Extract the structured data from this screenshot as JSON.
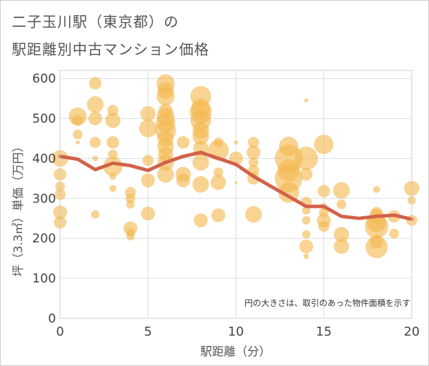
{
  "title": {
    "line1": "二子玉川駅（東京都）の",
    "line2": "駅距離別中古マンション価格"
  },
  "chart_data": {
    "type": "scatter",
    "title": "二子玉川駅（東京都）の駅距離別中古マンション価格",
    "xlabel": "駅距離（分）",
    "ylabel": "坪（3.3㎡）単価（万円）",
    "xlim": [
      0,
      20
    ],
    "ylim": [
      0,
      620
    ],
    "xticks": [
      "0",
      "5",
      "10",
      "15",
      "20"
    ],
    "yticks": [
      "0",
      "100",
      "200",
      "300",
      "400",
      "500",
      "600"
    ],
    "grid": true,
    "note": "円の大きさは、取引のあった物件面積を示す",
    "colors": {
      "bubble": "#f3b84f",
      "trend": "#d2624a",
      "grid": "#d9dde3"
    },
    "bubbles": [
      {
        "x": 0,
        "y": 400,
        "s": 12
      },
      {
        "x": 0,
        "y": 360,
        "s": 9
      },
      {
        "x": 0,
        "y": 330,
        "s": 7
      },
      {
        "x": 0,
        "y": 310,
        "s": 8
      },
      {
        "x": 0,
        "y": 265,
        "s": 10
      },
      {
        "x": 0,
        "y": 240,
        "s": 9
      },
      {
        "x": 1,
        "y": 505,
        "s": 13
      },
      {
        "x": 1,
        "y": 495,
        "s": 8
      },
      {
        "x": 1,
        "y": 460,
        "s": 7
      },
      {
        "x": 1,
        "y": 440,
        "s": 3
      },
      {
        "x": 2,
        "y": 588,
        "s": 9
      },
      {
        "x": 2,
        "y": 535,
        "s": 12
      },
      {
        "x": 2,
        "y": 500,
        "s": 10
      },
      {
        "x": 2,
        "y": 440,
        "s": 8
      },
      {
        "x": 2,
        "y": 400,
        "s": 4
      },
      {
        "x": 2,
        "y": 260,
        "s": 6
      },
      {
        "x": 3,
        "y": 520,
        "s": 8
      },
      {
        "x": 3,
        "y": 495,
        "s": 11
      },
      {
        "x": 3,
        "y": 440,
        "s": 9
      },
      {
        "x": 3,
        "y": 410,
        "s": 7
      },
      {
        "x": 3,
        "y": 380,
        "s": 14
      },
      {
        "x": 3,
        "y": 355,
        "s": 5
      },
      {
        "x": 3,
        "y": 325,
        "s": 5
      },
      {
        "x": 4,
        "y": 315,
        "s": 8
      },
      {
        "x": 4,
        "y": 300,
        "s": 7
      },
      {
        "x": 4,
        "y": 285,
        "s": 6
      },
      {
        "x": 4,
        "y": 225,
        "s": 10
      },
      {
        "x": 4,
        "y": 215,
        "s": 6
      },
      {
        "x": 4,
        "y": 205,
        "s": 6
      },
      {
        "x": 5,
        "y": 512,
        "s": 11
      },
      {
        "x": 5,
        "y": 475,
        "s": 13
      },
      {
        "x": 5,
        "y": 395,
        "s": 8
      },
      {
        "x": 5,
        "y": 345,
        "s": 10
      },
      {
        "x": 5,
        "y": 262,
        "s": 10
      },
      {
        "x": 6,
        "y": 588,
        "s": 13
      },
      {
        "x": 6,
        "y": 570,
        "s": 12
      },
      {
        "x": 6,
        "y": 555,
        "s": 13
      },
      {
        "x": 6,
        "y": 520,
        "s": 10
      },
      {
        "x": 6,
        "y": 505,
        "s": 13
      },
      {
        "x": 6,
        "y": 490,
        "s": 14
      },
      {
        "x": 6,
        "y": 470,
        "s": 15
      },
      {
        "x": 6,
        "y": 450,
        "s": 12
      },
      {
        "x": 6,
        "y": 430,
        "s": 12
      },
      {
        "x": 6,
        "y": 410,
        "s": 11
      },
      {
        "x": 6,
        "y": 390,
        "s": 12
      },
      {
        "x": 6,
        "y": 360,
        "s": 12
      },
      {
        "x": 7,
        "y": 440,
        "s": 9
      },
      {
        "x": 7,
        "y": 360,
        "s": 11
      },
      {
        "x": 7,
        "y": 345,
        "s": 10
      },
      {
        "x": 8,
        "y": 555,
        "s": 15
      },
      {
        "x": 8,
        "y": 525,
        "s": 14
      },
      {
        "x": 8,
        "y": 515,
        "s": 16
      },
      {
        "x": 8,
        "y": 495,
        "s": 15
      },
      {
        "x": 8,
        "y": 470,
        "s": 12
      },
      {
        "x": 8,
        "y": 455,
        "s": 12
      },
      {
        "x": 8,
        "y": 425,
        "s": 11
      },
      {
        "x": 8,
        "y": 390,
        "s": 12
      },
      {
        "x": 8,
        "y": 335,
        "s": 12
      },
      {
        "x": 8,
        "y": 245,
        "s": 10
      },
      {
        "x": 9,
        "y": 440,
        "s": 7
      },
      {
        "x": 9,
        "y": 420,
        "s": 15
      },
      {
        "x": 9,
        "y": 365,
        "s": 7
      },
      {
        "x": 9,
        "y": 340,
        "s": 11
      },
      {
        "x": 9,
        "y": 258,
        "s": 10
      },
      {
        "x": 10,
        "y": 440,
        "s": 3
      },
      {
        "x": 10,
        "y": 400,
        "s": 10
      },
      {
        "x": 10,
        "y": 340,
        "s": 2
      },
      {
        "x": 11,
        "y": 440,
        "s": 8
      },
      {
        "x": 11,
        "y": 415,
        "s": 10
      },
      {
        "x": 11,
        "y": 390,
        "s": 7
      },
      {
        "x": 11,
        "y": 370,
        "s": 8
      },
      {
        "x": 11,
        "y": 350,
        "s": 9
      },
      {
        "x": 11,
        "y": 260,
        "s": 12
      },
      {
        "x": 13,
        "y": 430,
        "s": 14
      },
      {
        "x": 13,
        "y": 400,
        "s": 20
      },
      {
        "x": 13,
        "y": 370,
        "s": 16
      },
      {
        "x": 13,
        "y": 350,
        "s": 20
      },
      {
        "x": 13,
        "y": 315,
        "s": 15
      },
      {
        "x": 14,
        "y": 545,
        "s": 3
      },
      {
        "x": 14,
        "y": 400,
        "s": 17
      },
      {
        "x": 14,
        "y": 360,
        "s": 9
      },
      {
        "x": 14,
        "y": 290,
        "s": 8
      },
      {
        "x": 14,
        "y": 270,
        "s": 6
      },
      {
        "x": 14,
        "y": 245,
        "s": 6
      },
      {
        "x": 14,
        "y": 210,
        "s": 6
      },
      {
        "x": 14,
        "y": 180,
        "s": 10
      },
      {
        "x": 14,
        "y": 155,
        "s": 4
      },
      {
        "x": 15,
        "y": 435,
        "s": 14
      },
      {
        "x": 15,
        "y": 318,
        "s": 9
      },
      {
        "x": 15,
        "y": 280,
        "s": 5
      },
      {
        "x": 15,
        "y": 265,
        "s": 7
      },
      {
        "x": 15,
        "y": 245,
        "s": 10
      },
      {
        "x": 15,
        "y": 230,
        "s": 8
      },
      {
        "x": 16,
        "y": 320,
        "s": 12
      },
      {
        "x": 16,
        "y": 285,
        "s": 7
      },
      {
        "x": 16,
        "y": 210,
        "s": 11
      },
      {
        "x": 16,
        "y": 180,
        "s": 11
      },
      {
        "x": 18,
        "y": 322,
        "s": 5
      },
      {
        "x": 18,
        "y": 265,
        "s": 8
      },
      {
        "x": 18,
        "y": 255,
        "s": 11
      },
      {
        "x": 18,
        "y": 240,
        "s": 14
      },
      {
        "x": 18,
        "y": 230,
        "s": 17
      },
      {
        "x": 18,
        "y": 192,
        "s": 10
      },
      {
        "x": 18,
        "y": 178,
        "s": 16
      },
      {
        "x": 19,
        "y": 255,
        "s": 9
      },
      {
        "x": 19,
        "y": 212,
        "s": 7
      },
      {
        "x": 20,
        "y": 325,
        "s": 11
      },
      {
        "x": 20,
        "y": 295,
        "s": 6
      },
      {
        "x": 20,
        "y": 245,
        "s": 8
      }
    ],
    "trend": {
      "x": [
        0,
        1,
        2,
        3,
        4,
        5,
        6,
        7,
        8,
        9,
        10,
        11,
        12,
        13,
        14,
        15,
        16,
        17,
        18,
        19,
        20
      ],
      "y": [
        405,
        398,
        372,
        388,
        382,
        370,
        390,
        405,
        415,
        400,
        385,
        355,
        330,
        305,
        280,
        280,
        255,
        250,
        255,
        258,
        248
      ]
    }
  }
}
